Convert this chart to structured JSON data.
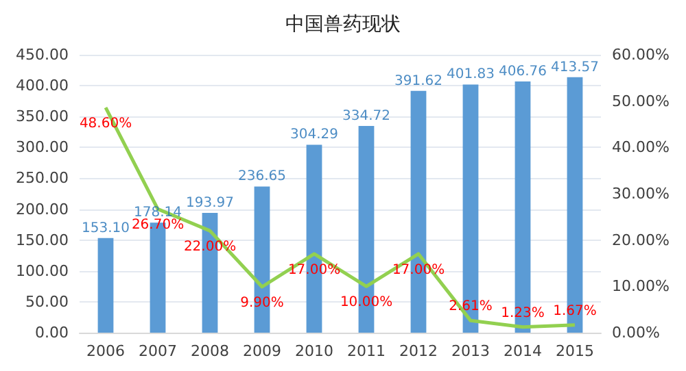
{
  "chart_data": {
    "type": "bar",
    "title": "中国兽药现状",
    "categories": [
      "2006",
      "2007",
      "2008",
      "2009",
      "2010",
      "2011",
      "2012",
      "2013",
      "2014",
      "2015"
    ],
    "series": [
      {
        "color": "#5b9bd5",
        "values": [
          153.1,
          178.14,
          193.97,
          236.65,
          304.29,
          334.72,
          391.62,
          401.83,
          406.76,
          413.57
        ],
        "value_labels": [
          "153.10",
          "178.14",
          "193.97",
          "236.65",
          "304.29",
          "334.72",
          "391.62",
          "401.83",
          "406.76",
          "413.57"
        ]
      },
      {
        "type": "line",
        "axis": "y2",
        "color": "#92d050",
        "values": [
          48.6,
          26.7,
          22.0,
          9.9,
          17.0,
          10.0,
          17.0,
          2.61,
          1.23,
          1.67
        ],
        "value_labels": [
          "48.60%",
          "26.70%",
          "22.00%",
          "9.90%",
          "17.00%",
          "10.00%",
          "17.00%",
          "2.61%",
          "1.23%",
          "1.67%"
        ]
      }
    ],
    "ylim": [
      0,
      450
    ],
    "yticks": [
      {
        "value": 0,
        "label": "0.00"
      },
      {
        "value": 50,
        "label": "50.00"
      },
      {
        "value": 100,
        "label": "100.00"
      },
      {
        "value": 150,
        "label": "150.00"
      },
      {
        "value": 200,
        "label": "200.00"
      },
      {
        "value": 250,
        "label": "250.00"
      },
      {
        "value": 300,
        "label": "300.00"
      },
      {
        "value": 350,
        "label": "350.00"
      },
      {
        "value": 400,
        "label": "400.00"
      },
      {
        "value": 450,
        "label": "450.00"
      }
    ],
    "y2lim": [
      0,
      60
    ],
    "y2ticks": [
      {
        "value": 0,
        "label": "0.00%"
      },
      {
        "value": 10,
        "label": "10.00%"
      },
      {
        "value": 20,
        "label": "20.00%"
      },
      {
        "value": 30,
        "label": "30.00%"
      },
      {
        "value": 40,
        "label": "40.00%"
      },
      {
        "value": 50,
        "label": "50.00%"
      },
      {
        "value": 60,
        "label": "60.00%"
      }
    ],
    "grid": "y",
    "marker": "none",
    "line_style": "solid"
  }
}
